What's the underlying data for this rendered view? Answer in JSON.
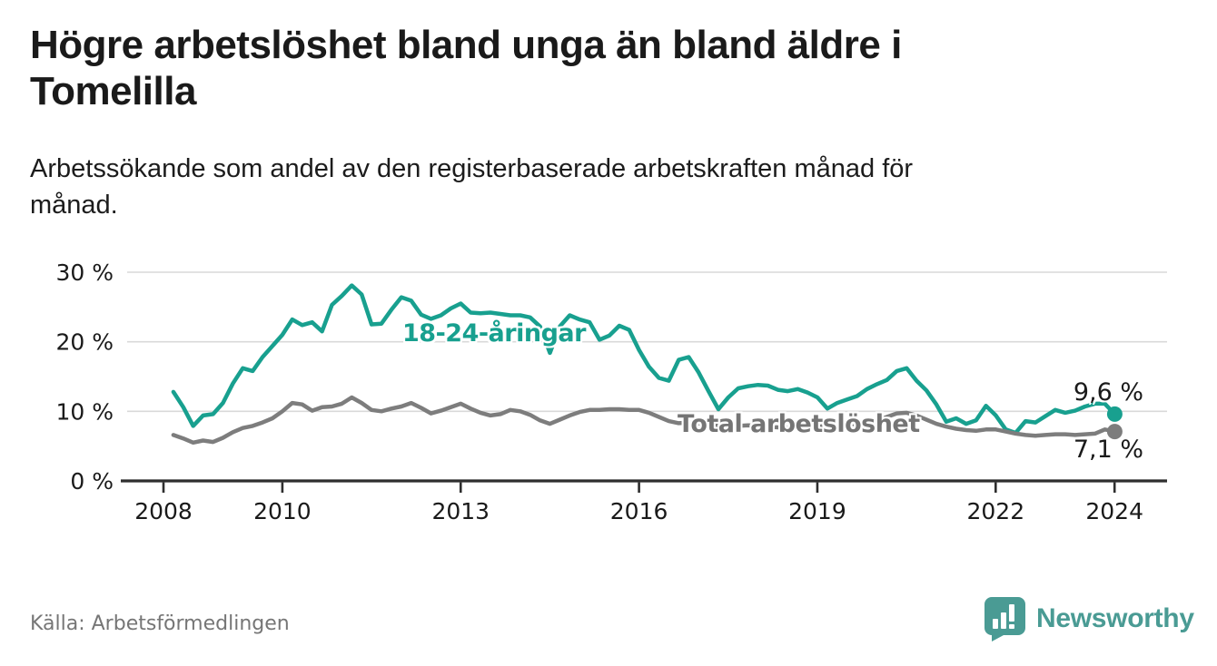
{
  "header": {
    "title_lines": [
      "Högre arbetslöshet bland unga än bland äldre i",
      "Tomelilla"
    ],
    "subtitle_lines": [
      "Arbetssökande som andel av den registerbaserade arbetskraften månad för",
      "månad."
    ]
  },
  "source": "Källa: Arbetsförmedlingen",
  "brand": {
    "name": "Newsworthy",
    "color": "#4a9b94"
  },
  "colors": {
    "youth_line": "#18a08f",
    "total_line": "#7d7d7d",
    "total_label": "#757575",
    "axis": "#2e2e2e",
    "grid": "#d9d9d9",
    "tick_text": "#1a1a1a",
    "muted_text": "#767676",
    "background": "#ffffff"
  },
  "chart_data": {
    "type": "line",
    "title": "Högre arbetslöshet bland unga än bland äldre i Tomelilla",
    "subtitle": "Arbetssökande som andel av den registerbaserade arbetskraften månad för månad.",
    "x_unit": "year (decimal; samples every 2 months)",
    "y_unit": "percent of registered labour force",
    "x_start": 2008.1667,
    "x_step": 0.1667,
    "xlim": [
      2007.4,
      2024.9
    ],
    "ylim": [
      0,
      30
    ],
    "grid": "horizontal",
    "legend_position": "inline-labels",
    "x_ticks": [
      2008,
      2010,
      2013,
      2016,
      2019,
      2022,
      2024
    ],
    "y_ticks": [
      {
        "v": 0,
        "label": "0 %"
      },
      {
        "v": 10,
        "label": "10 %"
      },
      {
        "v": 20,
        "label": "20 %"
      },
      {
        "v": 30,
        "label": "30 %"
      }
    ],
    "series": [
      {
        "name": "18-24-åringar",
        "color": "#18a08f",
        "end_label": "9,6 %",
        "end_value": 9.6,
        "values": [
          12.8,
          10.6,
          7.9,
          9.4,
          9.6,
          11.2,
          14.0,
          16.2,
          15.8,
          17.8,
          19.4,
          21.0,
          23.2,
          22.4,
          22.8,
          21.5,
          25.3,
          26.6,
          28.1,
          26.8,
          22.5,
          22.6,
          24.6,
          26.4,
          25.9,
          23.9,
          23.3,
          23.8,
          24.8,
          25.5,
          24.2,
          24.1,
          24.2,
          24.0,
          23.8,
          23.8,
          23.5,
          22.2,
          18.4,
          22.2,
          23.8,
          23.2,
          22.8,
          20.3,
          20.9,
          22.3,
          21.7,
          18.8,
          16.4,
          14.8,
          14.4,
          17.4,
          17.8,
          15.6,
          12.9,
          10.3,
          12.0,
          13.3,
          13.6,
          13.8,
          13.7,
          13.1,
          12.9,
          13.2,
          12.7,
          12.0,
          10.4,
          11.2,
          11.7,
          12.2,
          13.2,
          13.9,
          14.5,
          15.8,
          16.2,
          14.4,
          13.0,
          11.0,
          8.5,
          9.0,
          8.2,
          8.7,
          10.8,
          9.4,
          7.4,
          6.9,
          8.6,
          8.4,
          9.3,
          10.2,
          9.8,
          10.1,
          10.7,
          11.1,
          11.1,
          9.6
        ]
      },
      {
        "name": "Total arbetslöshet",
        "color": "#7d7d7d",
        "end_label": "7,1 %",
        "end_value": 7.1,
        "values": [
          6.6,
          6.1,
          5.5,
          5.8,
          5.6,
          6.2,
          7.0,
          7.6,
          7.9,
          8.4,
          9.0,
          10.0,
          11.2,
          11.0,
          10.1,
          10.6,
          10.7,
          11.1,
          12.0,
          11.2,
          10.2,
          10.0,
          10.4,
          10.7,
          11.2,
          10.5,
          9.7,
          10.1,
          10.6,
          11.1,
          10.4,
          9.8,
          9.4,
          9.6,
          10.2,
          10.0,
          9.5,
          8.7,
          8.2,
          8.8,
          9.4,
          9.9,
          10.2,
          10.2,
          10.3,
          10.3,
          10.2,
          10.2,
          9.8,
          9.2,
          8.6,
          8.3,
          8.4,
          8.3,
          8.1,
          7.9,
          7.8,
          7.9,
          8.0,
          7.9,
          7.8,
          7.7,
          7.6,
          7.7,
          7.7,
          7.8,
          7.9,
          8.0,
          8.1,
          8.2,
          8.3,
          8.6,
          9.2,
          9.7,
          9.8,
          9.4,
          8.8,
          8.2,
          7.8,
          7.5,
          7.3,
          7.2,
          7.4,
          7.4,
          7.1,
          6.8,
          6.6,
          6.5,
          6.6,
          6.7,
          6.7,
          6.6,
          6.7,
          6.8,
          7.4,
          7.1
        ]
      }
    ]
  }
}
